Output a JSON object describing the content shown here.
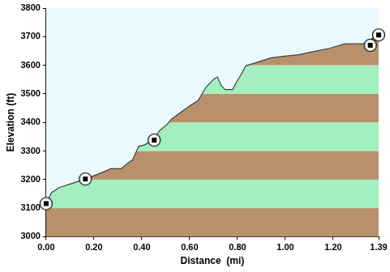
{
  "chart_data": {
    "type": "line",
    "x_label": "Distance  (mi)",
    "y_label": "Elevation (ft)",
    "xlim": [
      0,
      1.39
    ],
    "xticks": [
      {
        "value": 0,
        "label": "0.00"
      },
      {
        "value": 0.2,
        "label": "0.20"
      },
      {
        "value": 0.4,
        "label": "0.40"
      },
      {
        "value": 0.6,
        "label": "0.60"
      },
      {
        "value": 0.8,
        "label": "0.80"
      },
      {
        "value": 1,
        "label": "1.00"
      },
      {
        "value": 1.2,
        "label": "1.20"
      },
      {
        "value": 1.39,
        "label": "1.39"
      }
    ],
    "ylim": [
      3000,
      3800
    ],
    "yticks": [
      3000,
      3100,
      3200,
      3300,
      3400,
      3500,
      3600,
      3700,
      3800
    ],
    "series": [
      {
        "type": "line",
        "color": "#404040",
        "x": [
          0,
          0.023,
          0.055,
          0.103,
          0.164,
          0.232,
          0.271,
          0.313,
          0.345,
          0.361,
          0.387,
          0.41,
          0.448,
          0.474,
          0.506,
          0.522,
          0.571,
          0.603,
          0.635,
          0.668,
          0.7,
          0.716,
          0.732,
          0.748,
          0.78,
          0.797,
          0.813,
          0.835,
          0.877,
          0.942,
          0.99,
          1.055,
          1.119,
          1.184,
          1.248,
          1.329,
          1.39
        ],
        "values": [
          3116,
          3155,
          3172,
          3185,
          3202,
          3224,
          3238,
          3238,
          3260,
          3268,
          3316,
          3321,
          3338,
          3371,
          3393,
          3410,
          3440,
          3459,
          3476,
          3523,
          3551,
          3559,
          3529,
          3515,
          3515,
          3543,
          3565,
          3598,
          3609,
          3626,
          3631,
          3637,
          3648,
          3659,
          3675,
          3675,
          3709
        ]
      },
      {
        "type": "scatter",
        "marker": "circle",
        "color": "#000000",
        "x": [
          0,
          0.164,
          0.452,
          1.355,
          1.39
        ],
        "values": [
          3116,
          3202,
          3338,
          3670,
          3706
        ]
      }
    ]
  }
}
